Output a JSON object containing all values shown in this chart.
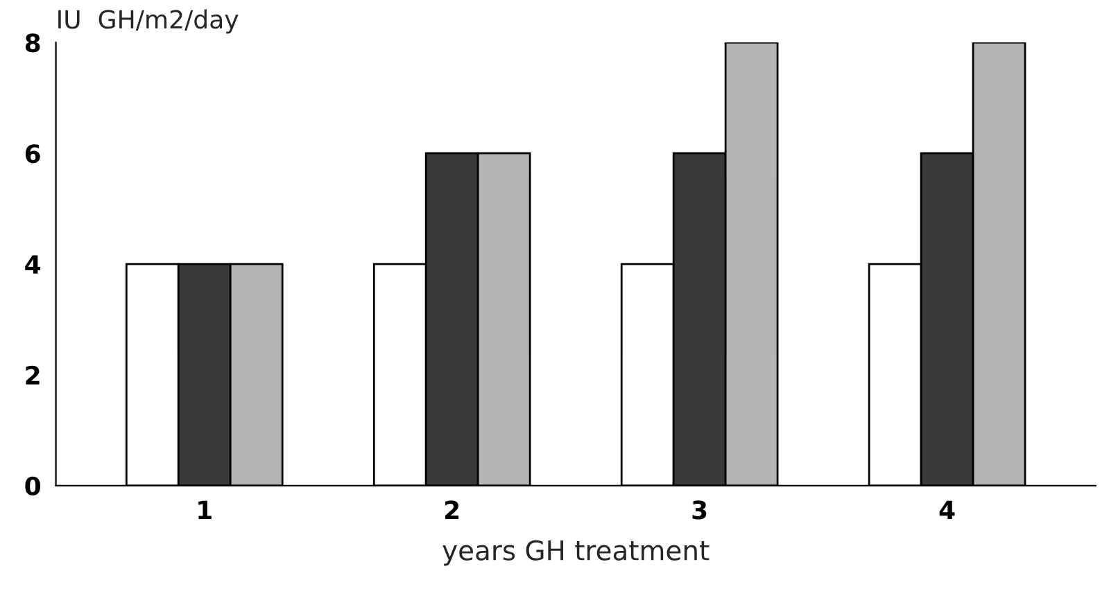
{
  "chart_data": {
    "type": "bar",
    "ylabel": "IU  GH/m2/day",
    "xlabel": "years GH treatment",
    "categories": [
      "1",
      "2",
      "3",
      "4"
    ],
    "series": [
      {
        "color": "#ffffff",
        "values": [
          4,
          4,
          4,
          4
        ]
      },
      {
        "color": "#3a3a3a",
        "values": [
          4,
          6,
          6,
          6
        ]
      },
      {
        "color": "#b5b5b5",
        "values": [
          4,
          6,
          8,
          8
        ]
      }
    ],
    "ylim": [
      0,
      8
    ],
    "yticks": [
      0,
      2,
      4,
      6,
      8
    ],
    "grid": false,
    "legend": false
  }
}
